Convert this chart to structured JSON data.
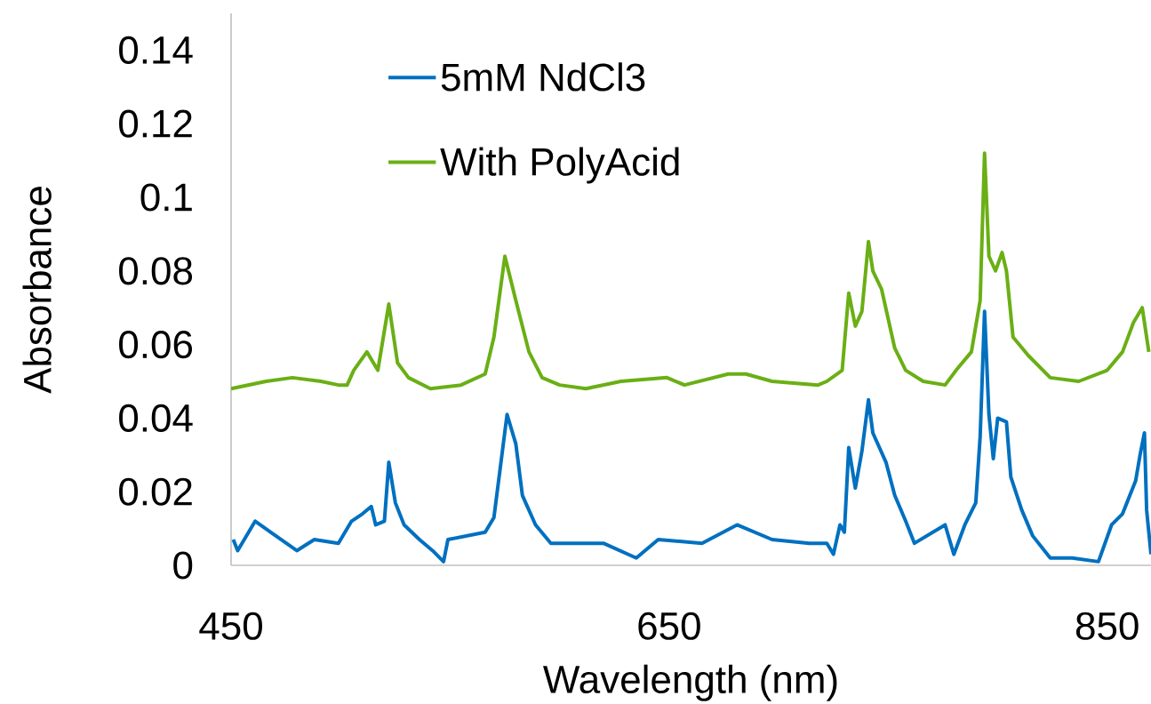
{
  "chart_data": {
    "type": "line",
    "xlabel": "Wavelength (nm)",
    "ylabel": "Absorbance",
    "xlim": [
      450,
      870
    ],
    "ylim": [
      0,
      0.15
    ],
    "xticks": [
      450,
      650,
      850
    ],
    "yticks": [
      0,
      0.02,
      0.04,
      0.06,
      0.08,
      0.1,
      0.12,
      0.14
    ],
    "grid": false,
    "legend": "top left",
    "marker": "none",
    "line_style": "solid",
    "series": [
      {
        "name": "5mM NdCl3",
        "color": "#0070c0",
        "x": [
          451,
          453,
          461,
          468,
          480,
          488,
          499,
          505,
          510,
          514,
          516,
          520,
          522,
          525,
          529,
          536,
          542,
          547,
          549,
          566,
          570,
          576,
          580,
          583,
          589,
          596,
          620,
          635,
          645,
          665,
          681,
          697,
          714,
          722,
          725,
          728,
          730,
          732,
          735,
          738,
          741,
          743,
          749,
          753,
          758,
          762,
          776,
          780,
          785,
          790,
          792,
          794,
          796,
          798,
          800,
          804,
          806,
          811,
          816,
          824,
          834,
          846,
          852,
          857,
          863,
          865,
          867,
          868,
          870
        ],
        "values": [
          0.007,
          0.004,
          0.012,
          0.009,
          0.004,
          0.007,
          0.006,
          0.012,
          0.014,
          0.016,
          0.011,
          0.012,
          0.028,
          0.017,
          0.011,
          0.007,
          0.004,
          0.001,
          0.007,
          0.009,
          0.013,
          0.041,
          0.033,
          0.019,
          0.011,
          0.006,
          0.006,
          0.002,
          0.007,
          0.006,
          0.011,
          0.007,
          0.006,
          0.006,
          0.003,
          0.011,
          0.009,
          0.032,
          0.021,
          0.031,
          0.045,
          0.036,
          0.028,
          0.019,
          0.012,
          0.006,
          0.011,
          0.003,
          0.011,
          0.017,
          0.035,
          0.069,
          0.041,
          0.029,
          0.04,
          0.039,
          0.024,
          0.015,
          0.008,
          0.002,
          0.002,
          0.001,
          0.011,
          0.014,
          0.023,
          0.03,
          0.036,
          0.015,
          0.003
        ]
      },
      {
        "name": "With PolyAcid",
        "color": "#6aaf15",
        "x": [
          450,
          466,
          478,
          491,
          499,
          503,
          506,
          512,
          517,
          522,
          526,
          531,
          541,
          555,
          566,
          570,
          575,
          580,
          586,
          592,
          600,
          612,
          628,
          649,
          657,
          677,
          685,
          697,
          718,
          722,
          729,
          732,
          735,
          738,
          741,
          743,
          747,
          753,
          758,
          766,
          776,
          781,
          788,
          792,
          794,
          796,
          799,
          802,
          804,
          807,
          814,
          824,
          837,
          850,
          857,
          862,
          866,
          869
        ],
        "values": [
          0.048,
          0.05,
          0.051,
          0.05,
          0.049,
          0.049,
          0.053,
          0.058,
          0.053,
          0.071,
          0.055,
          0.051,
          0.048,
          0.049,
          0.052,
          0.062,
          0.084,
          0.072,
          0.058,
          0.051,
          0.049,
          0.048,
          0.05,
          0.051,
          0.049,
          0.052,
          0.052,
          0.05,
          0.049,
          0.05,
          0.053,
          0.074,
          0.065,
          0.069,
          0.088,
          0.08,
          0.075,
          0.059,
          0.053,
          0.05,
          0.049,
          0.053,
          0.058,
          0.072,
          0.112,
          0.084,
          0.08,
          0.085,
          0.08,
          0.062,
          0.057,
          0.051,
          0.05,
          0.053,
          0.058,
          0.066,
          0.07,
          0.058
        ]
      }
    ]
  }
}
